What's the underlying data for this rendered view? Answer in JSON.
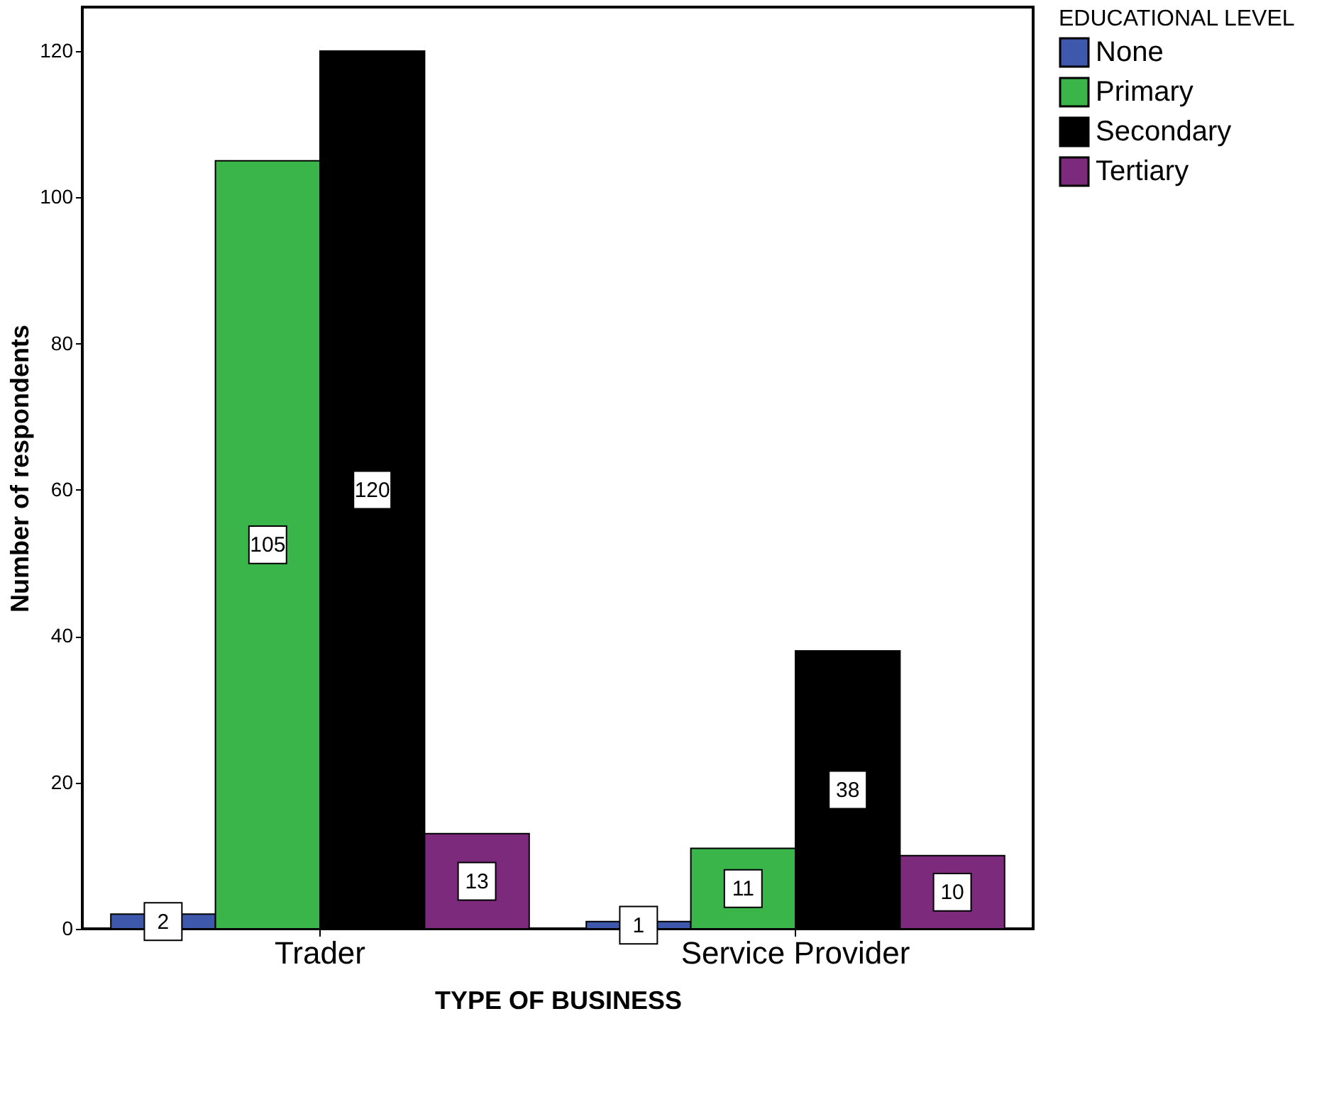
{
  "chart_data": {
    "type": "bar",
    "xlabel": "TYPE OF BUSINESS",
    "ylabel": "Number of respondents",
    "legend_title": "EDUCATIONAL LEVEL",
    "categories": [
      "Trader",
      "Service Provider"
    ],
    "series": [
      {
        "name": "None",
        "color": "#3e58ac",
        "values": [
          2,
          1
        ]
      },
      {
        "name": "Primary",
        "color": "#3ab54a",
        "values": [
          105,
          11
        ]
      },
      {
        "name": "Secondary",
        "color": "#000000",
        "values": [
          120,
          38
        ]
      },
      {
        "name": "Tertiary",
        "color": "#7b2a7c",
        "values": [
          13,
          10
        ]
      }
    ],
    "ylim": [
      0,
      126
    ],
    "yticks": [
      0,
      20,
      40,
      60,
      80,
      100,
      120
    ],
    "grid": false,
    "legend": "top right",
    "data_labels": true
  }
}
